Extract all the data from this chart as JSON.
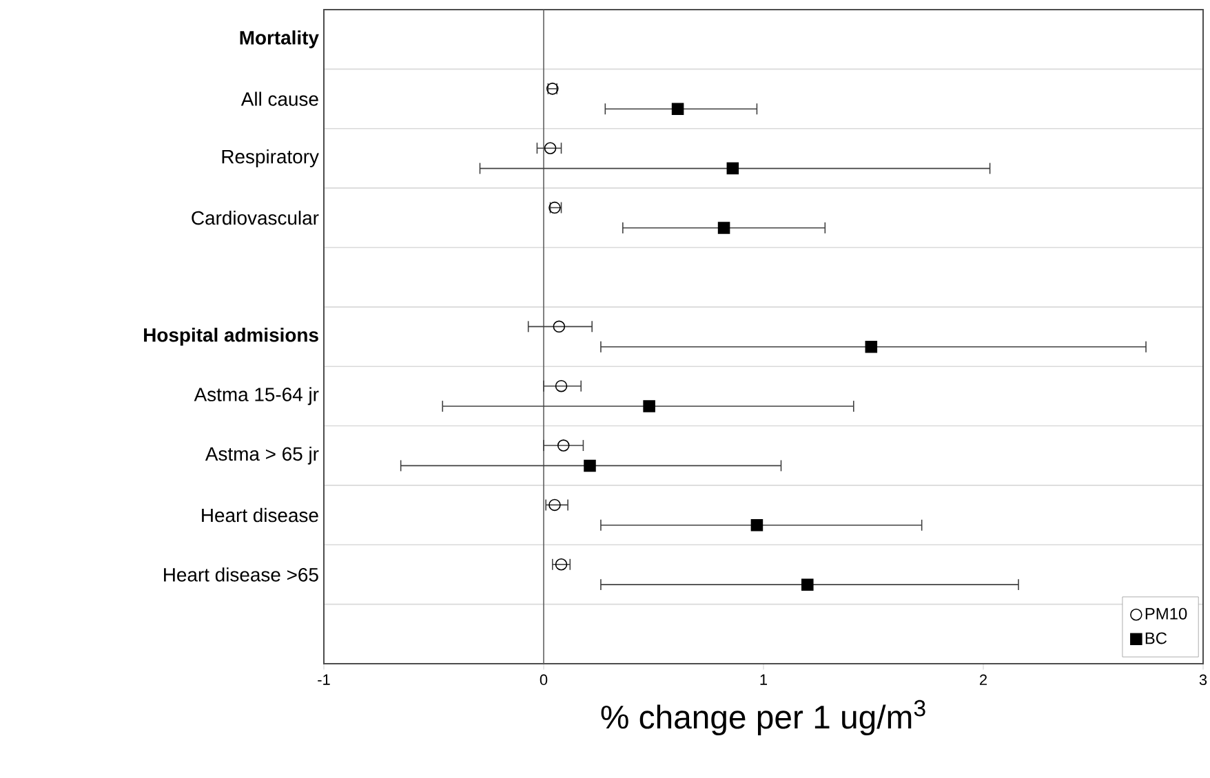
{
  "chart_data": {
    "type": "scatter",
    "orientation": "horizontal",
    "categories": [
      "**Mortality**",
      "All cause",
      "Respiratory",
      "Cardiovascular",
      null,
      "**Hospital admisions**",
      "Astma 15-64 jr",
      "Astma > 65 jr",
      "Heart disease",
      "Heart disease >65",
      null
    ],
    "series": [
      {
        "name": "PM10",
        "color": "#000000",
        "marker": "circle",
        "values": [
          null,
          0.04,
          0.03,
          0.05,
          null,
          0.07,
          0.08,
          0.09,
          0.05,
          0.08,
          null
        ],
        "errors": [
          null,
          [
            0.02,
            0.06
          ],
          [
            -0.03,
            0.08
          ],
          [
            0.03,
            0.08
          ],
          null,
          [
            -0.07,
            0.22
          ],
          [
            0.0,
            0.17
          ],
          [
            0.0,
            0.18
          ],
          [
            0.01,
            0.11
          ],
          [
            0.04,
            0.12
          ],
          null
        ]
      },
      {
        "name": "BC",
        "color": "#000000",
        "marker": "square",
        "values": [
          null,
          0.61,
          0.86,
          0.82,
          null,
          1.49,
          0.48,
          0.21,
          0.97,
          1.2,
          null
        ],
        "errors": [
          null,
          [
            0.28,
            0.97
          ],
          [
            -0.29,
            2.03
          ],
          [
            0.36,
            1.28
          ],
          null,
          [
            0.26,
            2.74
          ],
          [
            -0.46,
            1.41
          ],
          [
            -0.65,
            1.08
          ],
          [
            0.26,
            1.72
          ],
          [
            0.26,
            2.16
          ],
          null
        ]
      }
    ],
    "xlim": [
      -1,
      3
    ],
    "xticks": [
      -1,
      0,
      1,
      2,
      3
    ],
    "xlabel": "% change per 1 ug/m$^{3}$",
    "ref_lines": [
      {
        "axis": "x",
        "value": 0,
        "color": "#606060"
      }
    ],
    "grid": "y",
    "legend": "bottom right"
  }
}
